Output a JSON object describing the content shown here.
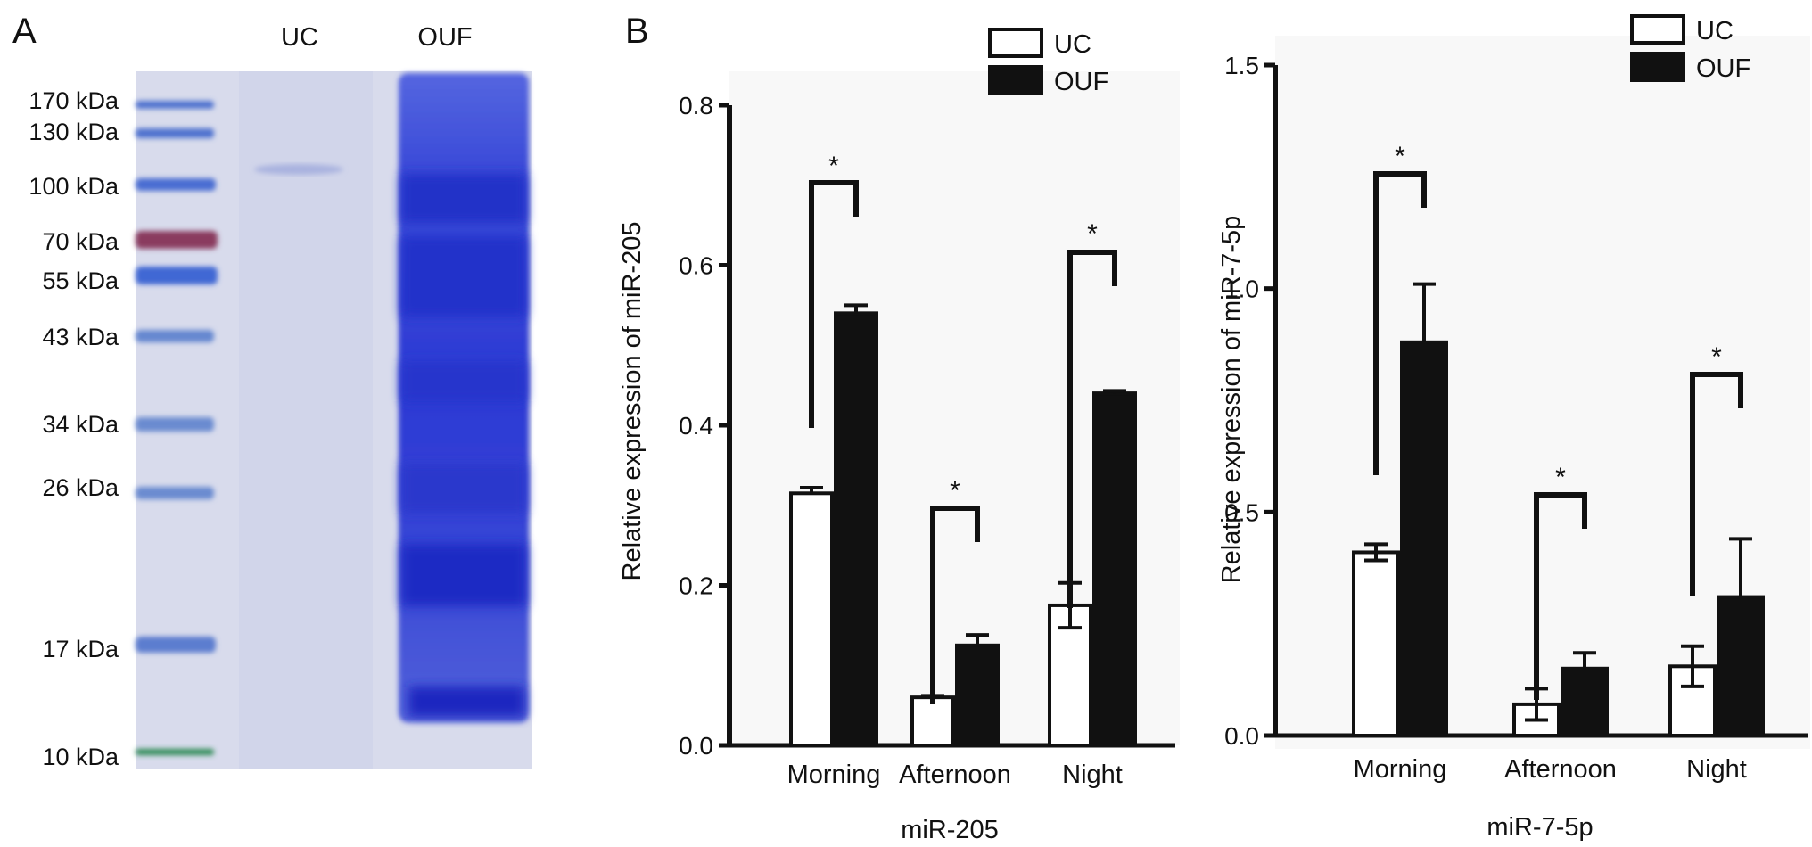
{
  "panels": {
    "a_label": "A",
    "b_label": "B"
  },
  "gel": {
    "lane_labels": [
      "UC",
      "OUF"
    ],
    "markers": [
      "170 kDa",
      "130 kDa",
      "100 kDa",
      "70 kDa",
      "55 kDa",
      "43 kDa",
      "34 kDa",
      "26 kDa",
      "17 kDa",
      "10 kDa"
    ],
    "colors": {
      "background": "#d9dced",
      "ladder": "#4a6fd0",
      "ladder_70": "#8a3a5a",
      "ladder_10": "#2f8a55",
      "ouf_lane": "#2e3fd6",
      "uc_lane": "#cfd3ea"
    }
  },
  "chart_data": [
    {
      "type": "bar",
      "categories": [
        "Morning",
        "Afternoon",
        "Night"
      ],
      "series": [
        {
          "name": "UC",
          "values": [
            0.315,
            0.06,
            0.175
          ],
          "errors": [
            0.007,
            0.002,
            0.028
          ],
          "fill": "#ffffff"
        },
        {
          "name": "OUF",
          "values": [
            0.54,
            0.125,
            0.44
          ],
          "errors": [
            0.01,
            0.013,
            0.003
          ],
          "fill": "#111111"
        }
      ],
      "xlabel": "miR-205",
      "ylabel": "Relative expression of miR-205",
      "ylim": [
        0,
        0.8
      ],
      "yticks": [
        "0.0",
        "0.2",
        "0.4",
        "0.6",
        "0.8"
      ],
      "significance": [
        "*",
        "*",
        "*"
      ],
      "legend": "top-right"
    },
    {
      "type": "bar",
      "categories": [
        "Morning",
        "Afternoon",
        "Night"
      ],
      "series": [
        {
          "name": "UC",
          "values": [
            0.41,
            0.07,
            0.155
          ],
          "errors": [
            0.018,
            0.035,
            0.045
          ],
          "fill": "#ffffff"
        },
        {
          "name": "OUF",
          "values": [
            0.88,
            0.15,
            0.31
          ],
          "errors": [
            0.13,
            0.035,
            0.13
          ],
          "fill": "#111111"
        }
      ],
      "xlabel": "miR-7-5p",
      "ylabel": "Relative expression of miR-7-5p",
      "ylim": [
        0,
        1.5
      ],
      "yticks": [
        "0.0",
        "0.5",
        "1.0",
        "1.5"
      ],
      "significance": [
        "*",
        "*",
        "*"
      ],
      "legend": "top-right"
    }
  ]
}
